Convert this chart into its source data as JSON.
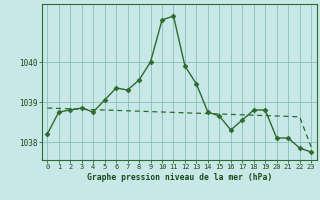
{
  "x": [
    0,
    1,
    2,
    3,
    4,
    5,
    6,
    7,
    8,
    9,
    10,
    11,
    12,
    13,
    14,
    15,
    16,
    17,
    18,
    19,
    20,
    21,
    22,
    23
  ],
  "y_main": [
    1038.2,
    1038.75,
    1038.8,
    1038.85,
    1038.75,
    1039.05,
    1039.35,
    1039.3,
    1039.55,
    1040.0,
    1041.05,
    1041.15,
    1039.9,
    1039.45,
    1038.75,
    1038.65,
    1038.3,
    1038.55,
    1038.8,
    1038.8,
    1038.1,
    1038.1,
    1037.85,
    1037.75
  ],
  "y_trend": [
    1038.85,
    1038.84,
    1038.83,
    1038.82,
    1038.81,
    1038.8,
    1038.79,
    1038.78,
    1038.77,
    1038.76,
    1038.75,
    1038.74,
    1038.73,
    1038.72,
    1038.71,
    1038.7,
    1038.69,
    1038.68,
    1038.67,
    1038.66,
    1038.65,
    1038.64,
    1038.63,
    1037.88
  ],
  "line_color": "#2d6a2d",
  "bg_color": "#c8e8e8",
  "grid_color": "#8bbcbc",
  "text_color": "#1a4a1a",
  "xlabel": "Graphe pression niveau de la mer (hPa)",
  "ylim": [
    1037.55,
    1041.45
  ],
  "yticks": [
    1038,
    1039,
    1040
  ],
  "xticks": [
    0,
    1,
    2,
    3,
    4,
    5,
    6,
    7,
    8,
    9,
    10,
    11,
    12,
    13,
    14,
    15,
    16,
    17,
    18,
    19,
    20,
    21,
    22,
    23
  ],
  "markersize": 2.5,
  "linewidth": 1.0,
  "trend_linewidth": 0.9
}
